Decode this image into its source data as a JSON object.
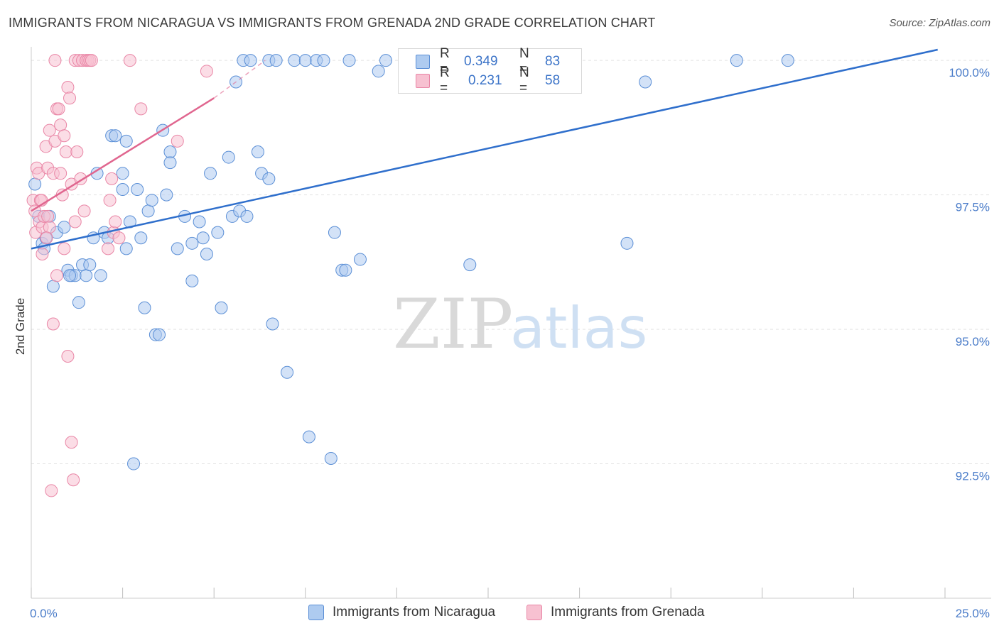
{
  "title": "IMMIGRANTS FROM NICARAGUA VS IMMIGRANTS FROM GRENADA 2ND GRADE CORRELATION CHART",
  "source": "Source: ZipAtlas.com",
  "watermark": {
    "zip": "ZIP",
    "atlas": "atlas"
  },
  "legend": {
    "rows": [
      {
        "r_label": "R =",
        "r_value": "0.349",
        "n_label": "N =",
        "n_value": "83"
      },
      {
        "r_label": "R =",
        "r_value": "0.231",
        "n_label": "N =",
        "n_value": "58"
      }
    ]
  },
  "colors": {
    "blue_fill": "#aecbf0",
    "blue_stroke": "#5b8fd6",
    "blue_line": "#2f6fcc",
    "pink_fill": "#f7c1d1",
    "pink_stroke": "#e986a6",
    "pink_line": "#e0668f",
    "tick_text": "#4a7cc9",
    "grid": "#e3e3e3"
  },
  "chart_data": {
    "type": "scatter",
    "title": "IMMIGRANTS FROM NICARAGUA VS IMMIGRANTS FROM GRENADA 2ND GRADE CORRELATION CHART",
    "xlabel": "",
    "ylabel": "2nd Grade",
    "xlim": [
      0,
      25
    ],
    "ylim": [
      90.0,
      100.2
    ],
    "x_tick_labels": [
      "0.0%",
      "25.0%"
    ],
    "y_ticks": [
      92.5,
      95.0,
      97.5,
      100.0
    ],
    "y_tick_labels": [
      "92.5%",
      "95.0%",
      "97.5%",
      "100.0%"
    ],
    "series": [
      {
        "name": "Immigrants from Nicaragua",
        "color": "#5b8fd6",
        "r": 0.349,
        "n": 83,
        "trend": {
          "x": [
            0.0,
            24.8
          ],
          "y": [
            96.5,
            100.2
          ]
        },
        "points": [
          [
            0.1,
            97.7
          ],
          [
            0.2,
            97.1
          ],
          [
            0.3,
            96.6
          ],
          [
            0.4,
            96.7
          ],
          [
            0.5,
            97.1
          ],
          [
            0.6,
            95.8
          ],
          [
            0.7,
            96.8
          ],
          [
            0.9,
            96.9
          ],
          [
            1.0,
            96.1
          ],
          [
            1.1,
            96.0
          ],
          [
            1.2,
            96.0
          ],
          [
            1.3,
            95.5
          ],
          [
            1.4,
            96.2
          ],
          [
            1.5,
            96.0
          ],
          [
            1.6,
            96.2
          ],
          [
            1.7,
            96.7
          ],
          [
            1.8,
            97.9
          ],
          [
            1.9,
            96.0
          ],
          [
            2.0,
            96.8
          ],
          [
            2.1,
            96.7
          ],
          [
            2.2,
            98.6
          ],
          [
            2.3,
            98.6
          ],
          [
            2.5,
            97.6
          ],
          [
            2.5,
            97.9
          ],
          [
            2.6,
            96.5
          ],
          [
            2.6,
            98.5
          ],
          [
            2.7,
            97.0
          ],
          [
            2.8,
            92.5
          ],
          [
            2.9,
            97.6
          ],
          [
            3.0,
            96.7
          ],
          [
            3.1,
            95.4
          ],
          [
            3.2,
            97.2
          ],
          [
            3.3,
            97.4
          ],
          [
            3.4,
            94.9
          ],
          [
            3.5,
            94.9
          ],
          [
            3.6,
            98.7
          ],
          [
            3.7,
            97.5
          ],
          [
            3.8,
            98.1
          ],
          [
            3.8,
            98.3
          ],
          [
            4.0,
            96.5
          ],
          [
            4.2,
            97.1
          ],
          [
            4.4,
            96.6
          ],
          [
            4.4,
            95.9
          ],
          [
            4.6,
            97.0
          ],
          [
            4.7,
            96.7
          ],
          [
            4.8,
            96.4
          ],
          [
            4.9,
            97.9
          ],
          [
            5.1,
            96.8
          ],
          [
            5.2,
            95.4
          ],
          [
            5.4,
            98.2
          ],
          [
            5.5,
            97.1
          ],
          [
            5.6,
            99.6
          ],
          [
            5.7,
            97.2
          ],
          [
            5.8,
            100.0
          ],
          [
            5.9,
            97.1
          ],
          [
            6.0,
            100.0
          ],
          [
            6.2,
            98.3
          ],
          [
            6.3,
            97.9
          ],
          [
            6.5,
            100.0
          ],
          [
            6.5,
            97.8
          ],
          [
            6.6,
            95.1
          ],
          [
            6.7,
            100.0
          ],
          [
            7.0,
            94.2
          ],
          [
            7.2,
            100.0
          ],
          [
            7.5,
            100.0
          ],
          [
            7.6,
            93.0
          ],
          [
            7.8,
            100.0
          ],
          [
            8.0,
            100.0
          ],
          [
            8.2,
            92.6
          ],
          [
            8.3,
            96.8
          ],
          [
            8.5,
            96.1
          ],
          [
            8.6,
            96.1
          ],
          [
            8.7,
            100.0
          ],
          [
            9.0,
            96.3
          ],
          [
            9.5,
            99.8
          ],
          [
            9.7,
            100.0
          ],
          [
            12.0,
            96.2
          ],
          [
            16.3,
            96.6
          ],
          [
            16.8,
            99.6
          ],
          [
            19.3,
            100.0
          ],
          [
            20.7,
            100.0
          ],
          [
            0.35,
            96.5
          ],
          [
            1.05,
            96.0
          ]
        ]
      },
      {
        "name": "Immigrants from Grenada",
        "color": "#e986a6",
        "r": 0.231,
        "n": 58,
        "trend": {
          "x": [
            0.0,
            5.0
          ],
          "y": [
            97.2,
            99.3
          ]
        },
        "trend_dashed": {
          "x": [
            5.0,
            6.4
          ],
          "y": [
            99.3,
            100.0
          ]
        },
        "points": [
          [
            0.05,
            97.4
          ],
          [
            0.1,
            97.2
          ],
          [
            0.12,
            96.8
          ],
          [
            0.15,
            98.0
          ],
          [
            0.2,
            97.9
          ],
          [
            0.22,
            97.0
          ],
          [
            0.25,
            97.4
          ],
          [
            0.3,
            96.9
          ],
          [
            0.3,
            96.4
          ],
          [
            0.35,
            97.1
          ],
          [
            0.4,
            98.4
          ],
          [
            0.45,
            98.0
          ],
          [
            0.45,
            97.1
          ],
          [
            0.5,
            96.9
          ],
          [
            0.5,
            98.7
          ],
          [
            0.55,
            92.0
          ],
          [
            0.6,
            97.9
          ],
          [
            0.6,
            95.1
          ],
          [
            0.65,
            100.0
          ],
          [
            0.65,
            98.5
          ],
          [
            0.7,
            96.0
          ],
          [
            0.7,
            99.1
          ],
          [
            0.75,
            99.1
          ],
          [
            0.8,
            98.8
          ],
          [
            0.8,
            97.9
          ],
          [
            0.85,
            97.5
          ],
          [
            0.9,
            98.6
          ],
          [
            0.9,
            96.5
          ],
          [
            0.95,
            98.3
          ],
          [
            1.0,
            99.5
          ],
          [
            1.0,
            94.5
          ],
          [
            1.05,
            99.3
          ],
          [
            1.1,
            97.7
          ],
          [
            1.1,
            92.9
          ],
          [
            1.15,
            92.2
          ],
          [
            1.2,
            97.0
          ],
          [
            1.2,
            100.0
          ],
          [
            1.25,
            98.3
          ],
          [
            1.3,
            100.0
          ],
          [
            1.35,
            97.8
          ],
          [
            1.4,
            100.0
          ],
          [
            1.45,
            97.2
          ],
          [
            1.5,
            100.0
          ],
          [
            1.55,
            100.0
          ],
          [
            1.6,
            100.0
          ],
          [
            1.65,
            100.0
          ],
          [
            2.1,
            96.5
          ],
          [
            2.15,
            97.4
          ],
          [
            2.2,
            97.8
          ],
          [
            2.25,
            96.8
          ],
          [
            2.3,
            97.0
          ],
          [
            2.4,
            96.7
          ],
          [
            2.7,
            100.0
          ],
          [
            3.0,
            99.1
          ],
          [
            4.0,
            98.5
          ],
          [
            4.8,
            99.8
          ],
          [
            0.28,
            97.4
          ],
          [
            0.42,
            96.7
          ]
        ]
      }
    ]
  },
  "bottom_legend": [
    {
      "label": "Immigrants from Nicaragua"
    },
    {
      "label": "Immigrants from Grenada"
    }
  ]
}
